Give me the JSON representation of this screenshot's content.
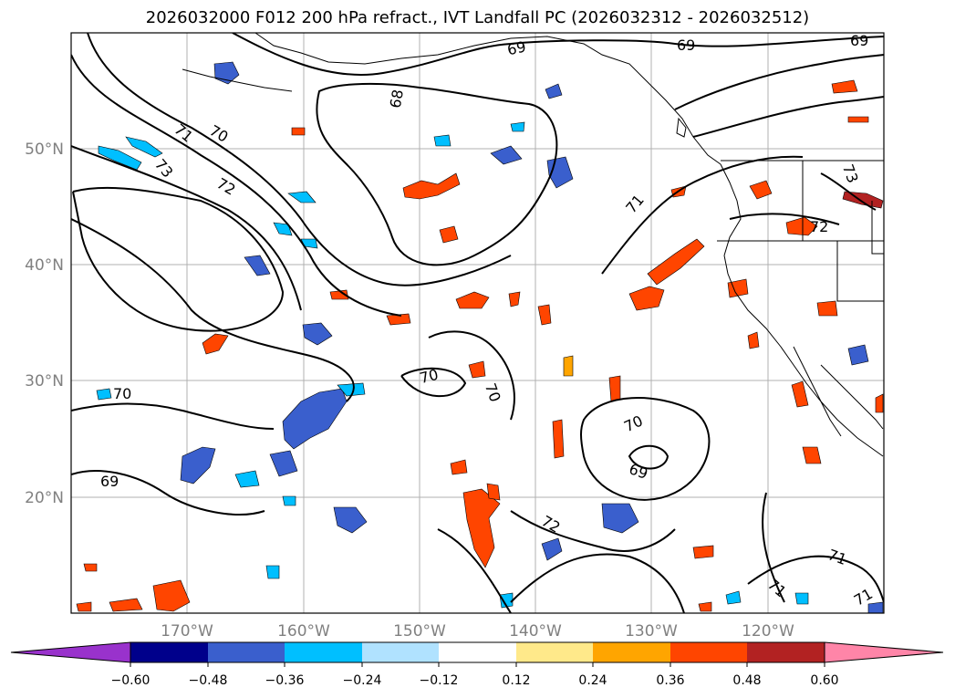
{
  "title": "2026032000 F012 200 hPa refract., IVT Landfall PC (2026032312 - 2026032512)",
  "map": {
    "lat_ticks": [
      "50°N",
      "40°N",
      "30°N",
      "20°N"
    ],
    "lon_ticks": [
      "170°W",
      "160°W",
      "150°W",
      "140°W",
      "130°W",
      "120°W"
    ],
    "contour_labels": [
      "69",
      "69",
      "69",
      "68",
      "71",
      "70",
      "73",
      "72",
      "71",
      "73",
      "72",
      "70",
      "70",
      "70",
      "70",
      "69",
      "69",
      "72",
      "71",
      "71",
      "71"
    ]
  },
  "colorbar": {
    "ticks": [
      "−0.60",
      "−0.48",
      "−0.36",
      "−0.24",
      "−0.12",
      "0.12",
      "0.24",
      "0.36",
      "0.48",
      "0.60"
    ],
    "colors": [
      "#9932cc",
      "#00008b",
      "#3a5fcd",
      "#00bfff",
      "#b0e2ff",
      "#ffffff",
      "#ffe98a",
      "#ffa500",
      "#ff4500",
      "#b22222",
      "#ff85a8"
    ]
  },
  "colors": {
    "negative_fill": "#3a5fcd",
    "negative_light": "#00bfff",
    "positive_fill": "#ff4500",
    "positive_light": "#ffa500",
    "positive_edge": "#ffe98a",
    "land_outline": "#000000",
    "gridline": "#b0b0b0"
  }
}
